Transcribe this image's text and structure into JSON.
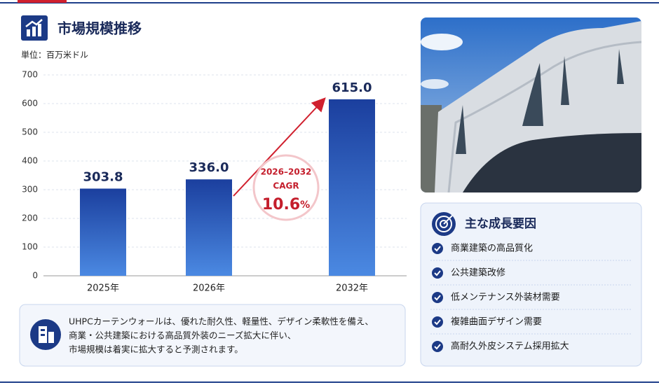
{
  "header": {
    "title": "市場規模推移"
  },
  "chart_data": {
    "type": "bar",
    "y_label": "単位：百万米ドル",
    "categories": [
      "2025年",
      "2026年",
      "2032年"
    ],
    "values": [
      303.8,
      336.0,
      615.0
    ],
    "value_labels": [
      "303.8",
      "336.0",
      "615.0"
    ],
    "color": "#2656b8",
    "ylim": [
      0,
      700
    ],
    "yticks": [
      0,
      100,
      200,
      300,
      400,
      500,
      600,
      700
    ],
    "grid": true,
    "annotation": {
      "period": "2026–2032",
      "label": "CAGR",
      "value": "10.6",
      "unit": "%"
    }
  },
  "note": {
    "lines": [
      "UHPCカーテンウォールは、優れた耐久性、軽量性、デザイン柔軟性を備え、",
      "商業・公共建築における高品質外装のニーズ拡大に伴い、",
      "市場規模は着実に拡大すると予測されます。"
    ]
  },
  "drivers": {
    "title": "主な成長要因",
    "items": [
      "商業建築の高品質化",
      "公共建築改修",
      "低メンテナンス外装材需要",
      "複雑曲面デザイン需要",
      "高耐久外皮システム採用拡大"
    ]
  }
}
